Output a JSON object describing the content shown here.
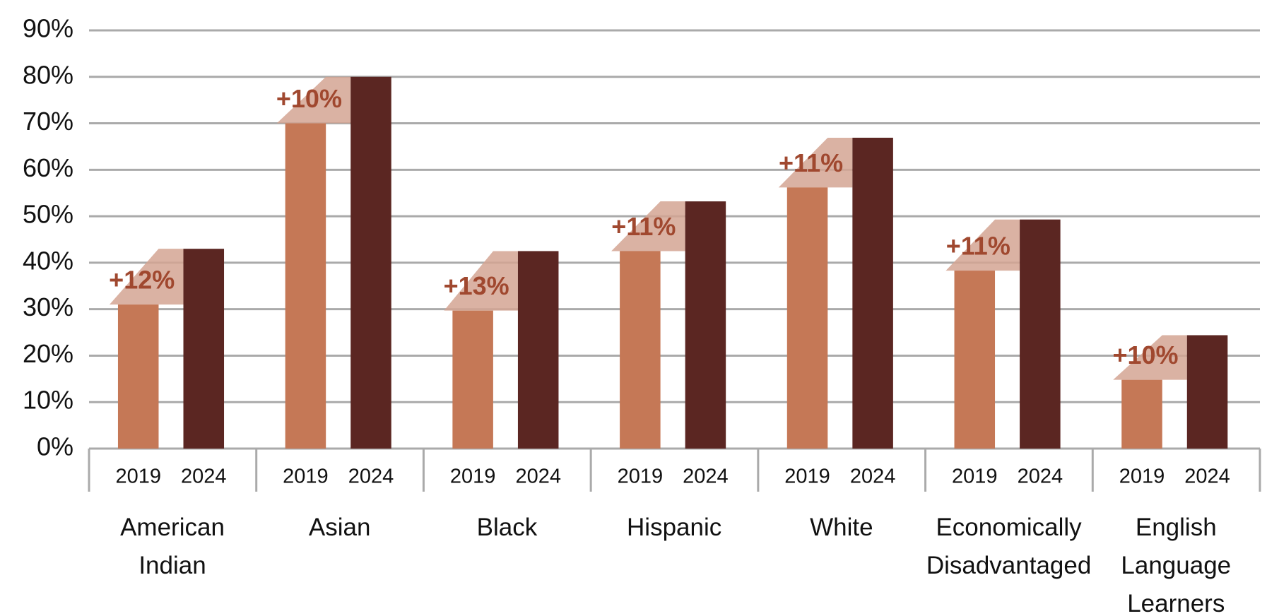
{
  "chart_data": {
    "type": "bar",
    "categories": [
      "American Indian",
      "Asian",
      "Black",
      "Hispanic",
      "White",
      "Economically Disadvantaged",
      "English Language Learners"
    ],
    "series": [
      {
        "name": "2019",
        "color": "#c57856",
        "values": [
          31,
          70,
          29.7,
          42.5,
          56.2,
          38.3,
          14.8
        ]
      },
      {
        "name": "2024",
        "color": "#5b2622",
        "values": [
          43,
          80,
          42.5,
          53.2,
          66.9,
          49.3,
          24.4
        ]
      }
    ],
    "change_labels": [
      "+12%",
      "+10%",
      "+13%",
      "+11%",
      "+11%",
      "+11%",
      "+10%"
    ],
    "ylim": [
      0,
      90
    ],
    "yticks": [
      {
        "value": 0,
        "label": "0%"
      },
      {
        "value": 10,
        "label": "10%"
      },
      {
        "value": 20,
        "label": "20%"
      },
      {
        "value": 30,
        "label": "30%"
      },
      {
        "value": 40,
        "label": "40%"
      },
      {
        "value": 50,
        "label": "50%"
      },
      {
        "value": 60,
        "label": "60%"
      },
      {
        "value": 70,
        "label": "70%"
      },
      {
        "value": 80,
        "label": "80%"
      },
      {
        "value": 90,
        "label": "90%"
      }
    ],
    "grid": true
  }
}
